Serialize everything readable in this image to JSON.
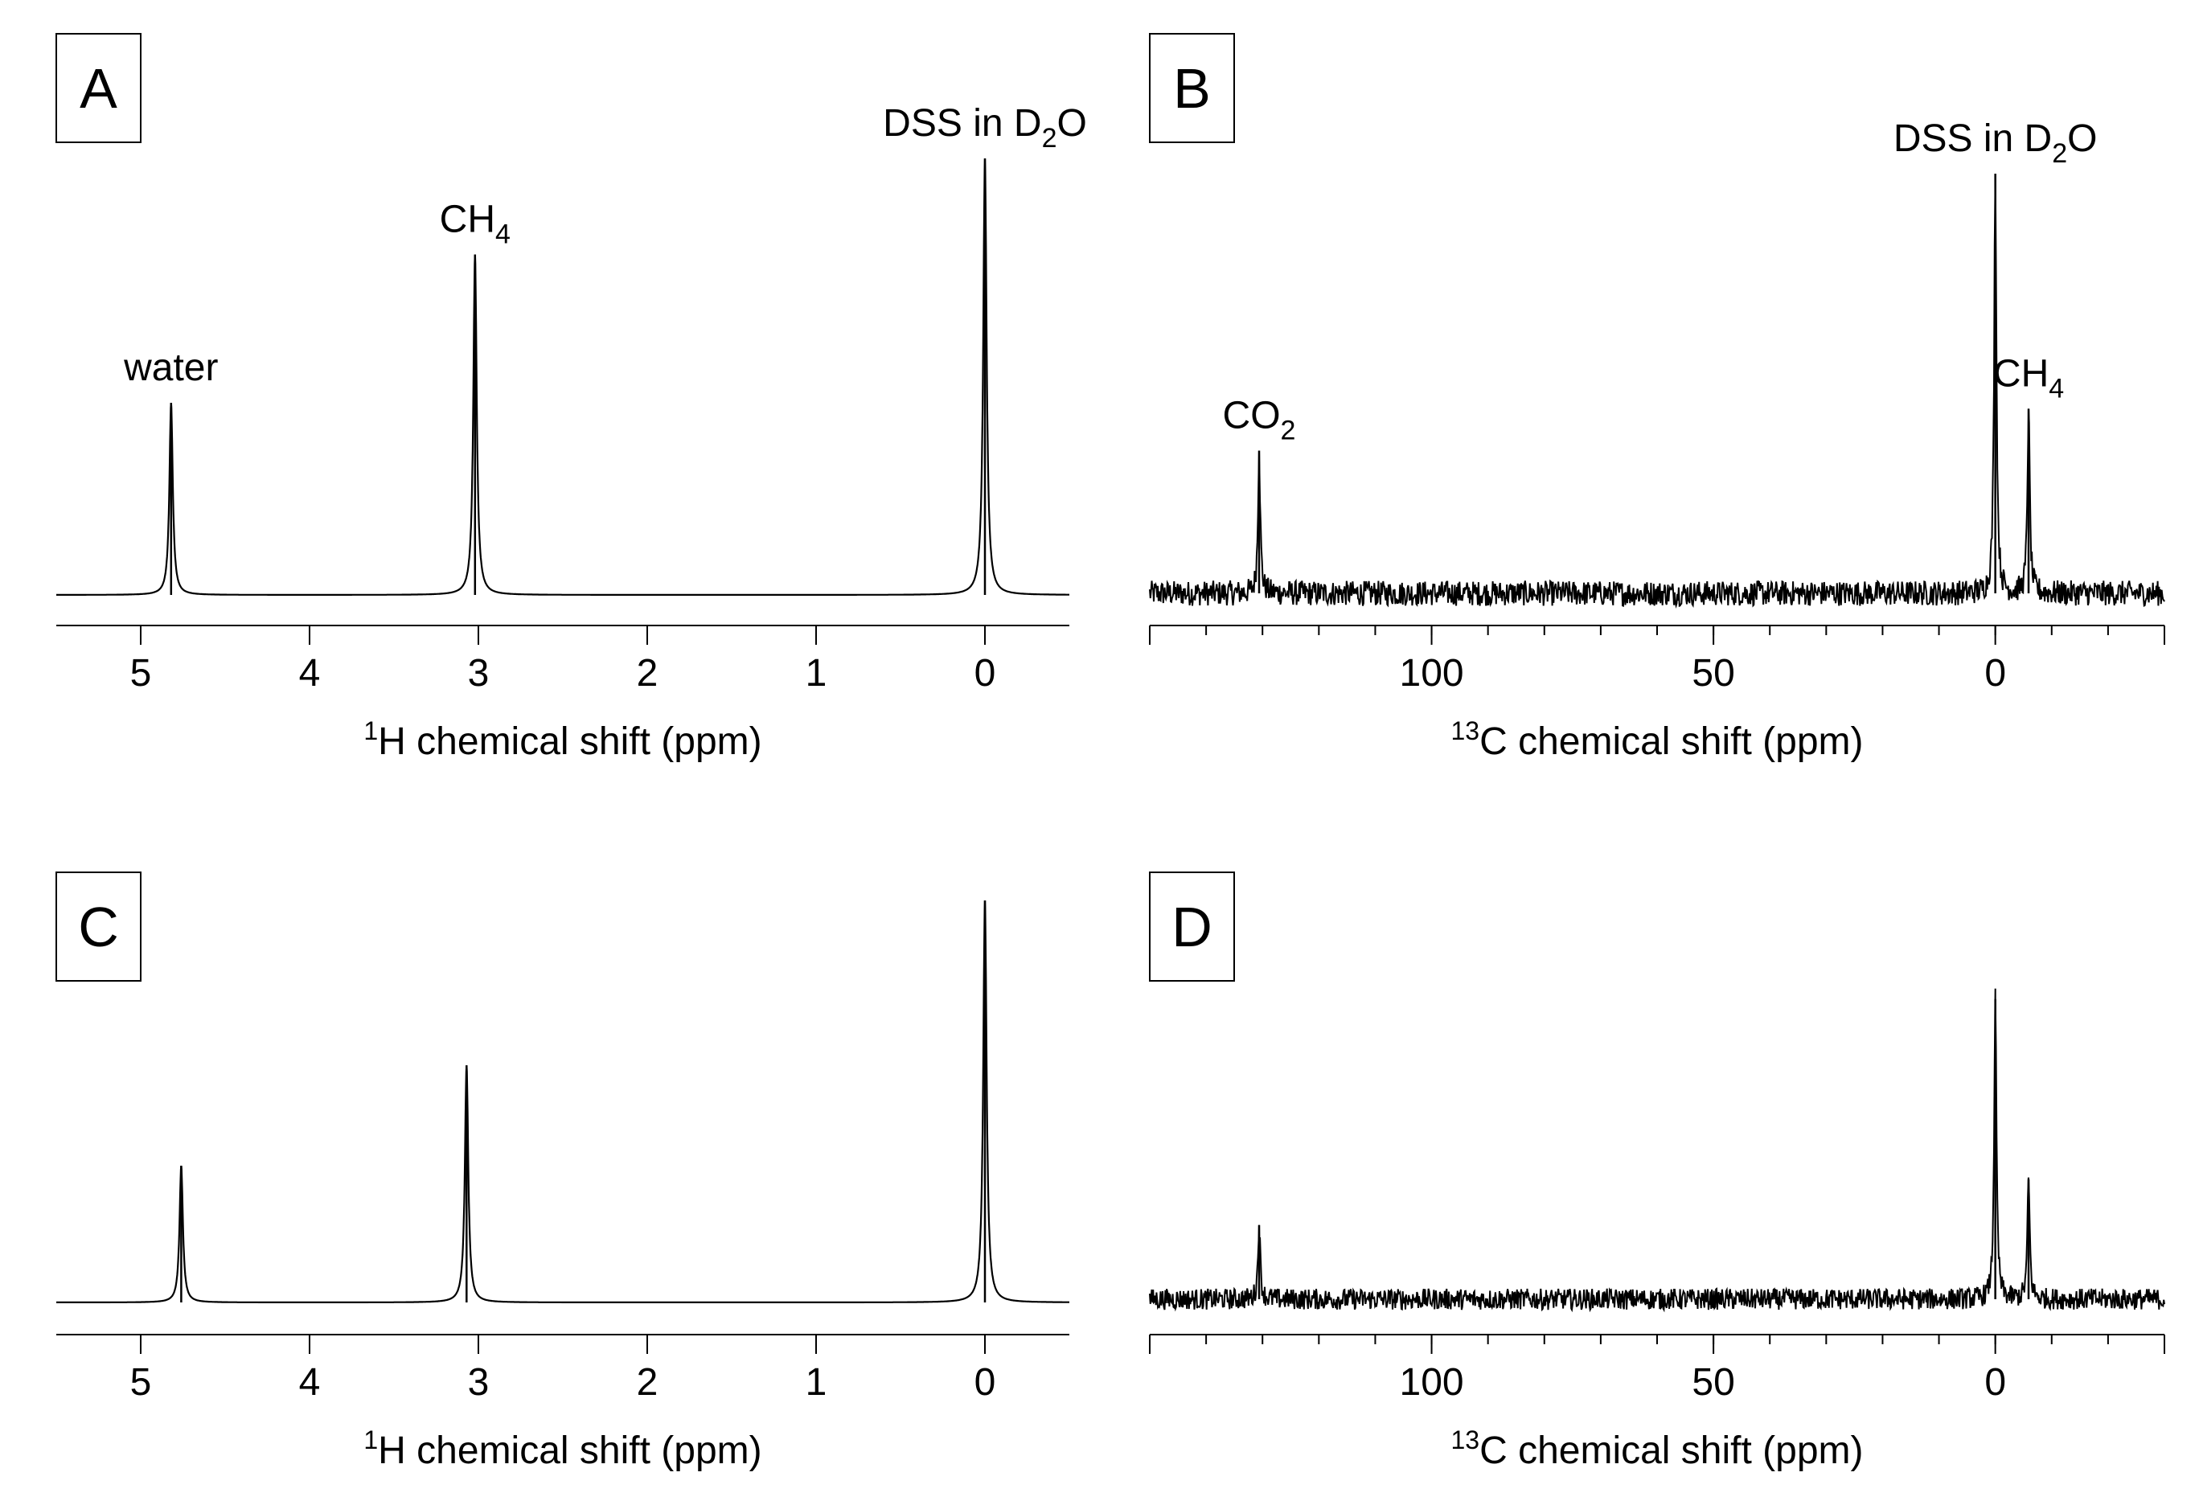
{
  "figure": {
    "colors": {
      "trace": "#000000",
      "axis": "#000000",
      "text": "#000000",
      "background": "#ffffff"
    }
  },
  "chart_data": [
    {
      "panel": "A",
      "type": "line",
      "nucleus": "1H",
      "xlabel": {
        "sup": "1",
        "text": "H chemical shift (ppm)"
      },
      "xlim": [
        5.5,
        -0.5
      ],
      "x_reversed": true,
      "xticks": [
        5,
        4,
        3,
        2,
        1,
        0
      ],
      "xtick_labels": [
        "5",
        "4",
        "3",
        "2",
        "1",
        "0"
      ],
      "minor_step": null,
      "noise": 0.0,
      "peaks": [
        {
          "shift": 4.82,
          "height": 0.44,
          "label": {
            "main": "water",
            "sub": "",
            "tail": ""
          }
        },
        {
          "shift": 3.02,
          "height": 0.78,
          "label": {
            "main": "CH",
            "sub": "4",
            "tail": ""
          }
        },
        {
          "shift": 0.0,
          "height": 1.0,
          "label": {
            "main": "DSS in D",
            "sub": "2",
            "tail": "O"
          }
        }
      ],
      "ylim": [
        0,
        1.05
      ],
      "grid": false
    },
    {
      "panel": "B",
      "type": "line",
      "nucleus": "13C",
      "xlabel": {
        "sup": "13",
        "text": "C chemical shift (ppm)"
      },
      "xlim": [
        150,
        -30
      ],
      "x_reversed": true,
      "xticks": [
        100,
        50,
        0
      ],
      "xtick_labels": [
        "100",
        "50",
        "0"
      ],
      "minor_step": 10,
      "noise": 0.03,
      "peaks": [
        {
          "shift": 130.6,
          "height": 0.34,
          "label": {
            "main": "CO",
            "sub": "2",
            "tail": ""
          }
        },
        {
          "shift": 0.0,
          "height": 1.0,
          "label": {
            "main": "DSS in D",
            "sub": "2",
            "tail": "O"
          }
        },
        {
          "shift": -5.9,
          "height": 0.44,
          "label": {
            "main": "CH",
            "sub": "4",
            "tail": ""
          }
        }
      ],
      "ylim": [
        0,
        1.05
      ],
      "grid": false
    },
    {
      "panel": "C",
      "type": "line",
      "nucleus": "1H",
      "xlabel": {
        "sup": "1",
        "text": "H chemical shift (ppm)"
      },
      "xlim": [
        5.5,
        -0.5
      ],
      "x_reversed": true,
      "xticks": [
        5,
        4,
        3,
        2,
        1,
        0
      ],
      "xtick_labels": [
        "5",
        "4",
        "3",
        "2",
        "1",
        "0"
      ],
      "minor_step": null,
      "noise": 0.0,
      "peaks": [
        {
          "shift": 4.76,
          "height": 0.34,
          "label": null
        },
        {
          "shift": 3.07,
          "height": 0.59,
          "label": null
        },
        {
          "shift": 0.0,
          "height": 1.0,
          "label": null
        }
      ],
      "ylim": [
        0,
        1.05
      ],
      "grid": false
    },
    {
      "panel": "D",
      "type": "line",
      "nucleus": "13C",
      "xlabel": {
        "sup": "13",
        "text": "C chemical shift (ppm)"
      },
      "xlim": [
        150,
        -30
      ],
      "x_reversed": true,
      "xticks": [
        100,
        50,
        0
      ],
      "xtick_labels": [
        "100",
        "50",
        "0"
      ],
      "minor_step": 10,
      "noise": 0.03,
      "peaks": [
        {
          "shift": 130.6,
          "height": 0.21,
          "label": null
        },
        {
          "shift": 0.0,
          "height": 0.85,
          "label": null
        },
        {
          "shift": -5.9,
          "height": 0.34,
          "label": null
        }
      ],
      "ylim": [
        0,
        1.05
      ],
      "grid": false
    }
  ]
}
